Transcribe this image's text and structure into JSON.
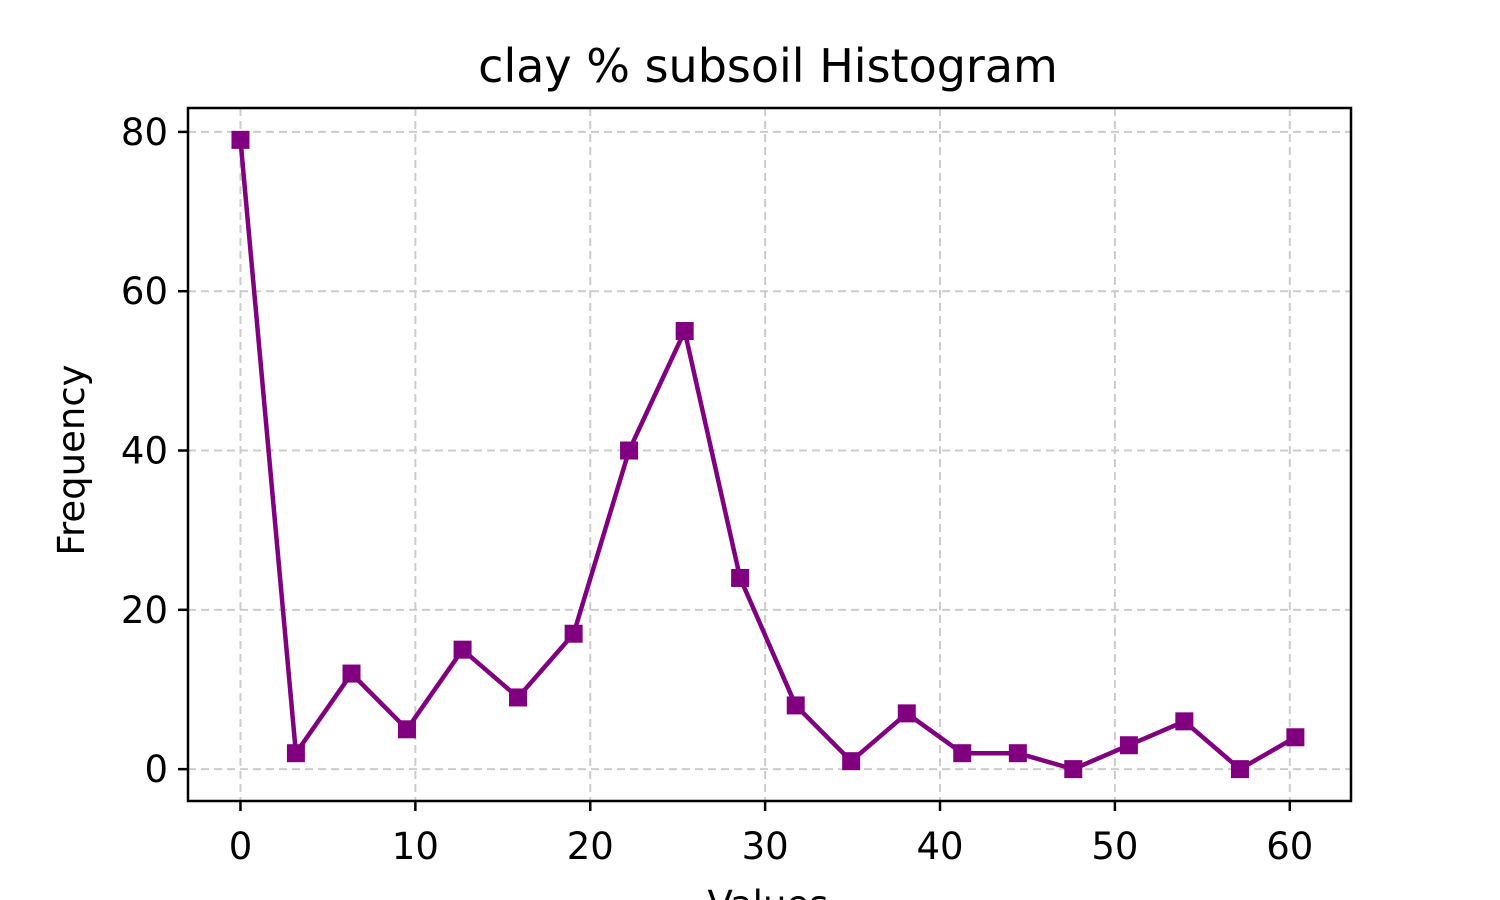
{
  "chart_data": {
    "type": "line",
    "title": "clay % subsoil Histogram",
    "xlabel": "Values",
    "ylabel": "Frequency",
    "xlim": [
      -3,
      63.5
    ],
    "ylim": [
      -4,
      83
    ],
    "xticks": [
      0,
      10,
      20,
      30,
      40,
      50,
      60
    ],
    "yticks": [
      0,
      20,
      40,
      60,
      80
    ],
    "grid": true,
    "marker": "square",
    "color": "#800080",
    "series": [
      {
        "x": [
          0,
          3.17,
          6.35,
          9.52,
          12.7,
          15.87,
          19.05,
          22.22,
          25.4,
          28.57,
          31.75,
          34.92,
          38.1,
          41.27,
          44.45,
          47.62,
          50.8,
          53.97,
          57.15,
          60.32
        ],
        "y": [
          79,
          2,
          12,
          5,
          15,
          9,
          17,
          40,
          55,
          24,
          8,
          1,
          7,
          2,
          2,
          0,
          3,
          6,
          0,
          4
        ]
      }
    ]
  }
}
